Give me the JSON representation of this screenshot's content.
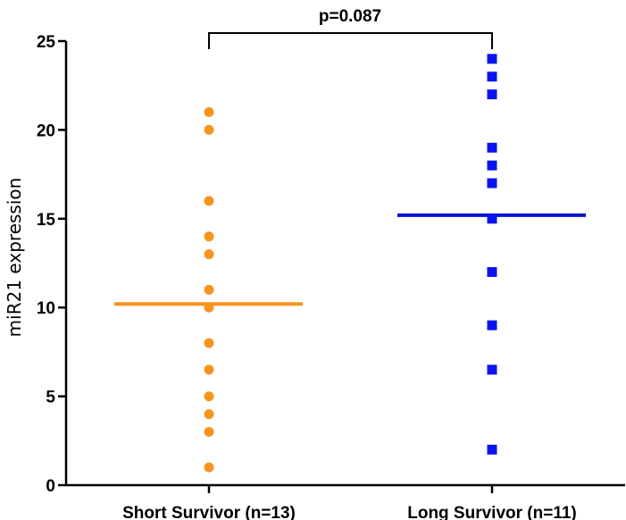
{
  "chart_data": {
    "type": "scatter",
    "title": "",
    "xlabel": "",
    "ylabel": "miR21 expression",
    "ylim": [
      0,
      25
    ],
    "yticks": [
      "0",
      "5",
      "10",
      "15",
      "20",
      "25"
    ],
    "categories": [
      "Short Survivor (n=13)",
      "Long Survivor (n=11)"
    ],
    "series": [
      {
        "category": "Short Survivor (n=13)",
        "marker": "circle",
        "color": "#F7941D",
        "values": [
          21,
          20,
          16,
          14,
          13,
          11,
          10,
          8,
          6.5,
          5,
          4,
          3,
          1
        ],
        "mean": 10.2
      },
      {
        "category": "Long Survivor (n=11)",
        "marker": "square",
        "color": "#0A14F0",
        "mean_color": "#0A14D4",
        "values": [
          24,
          23,
          22,
          19,
          18,
          17,
          15,
          12,
          9,
          6.5,
          2
        ],
        "mean": 15.2
      }
    ],
    "annotation": "p=0.087",
    "grid": false
  }
}
